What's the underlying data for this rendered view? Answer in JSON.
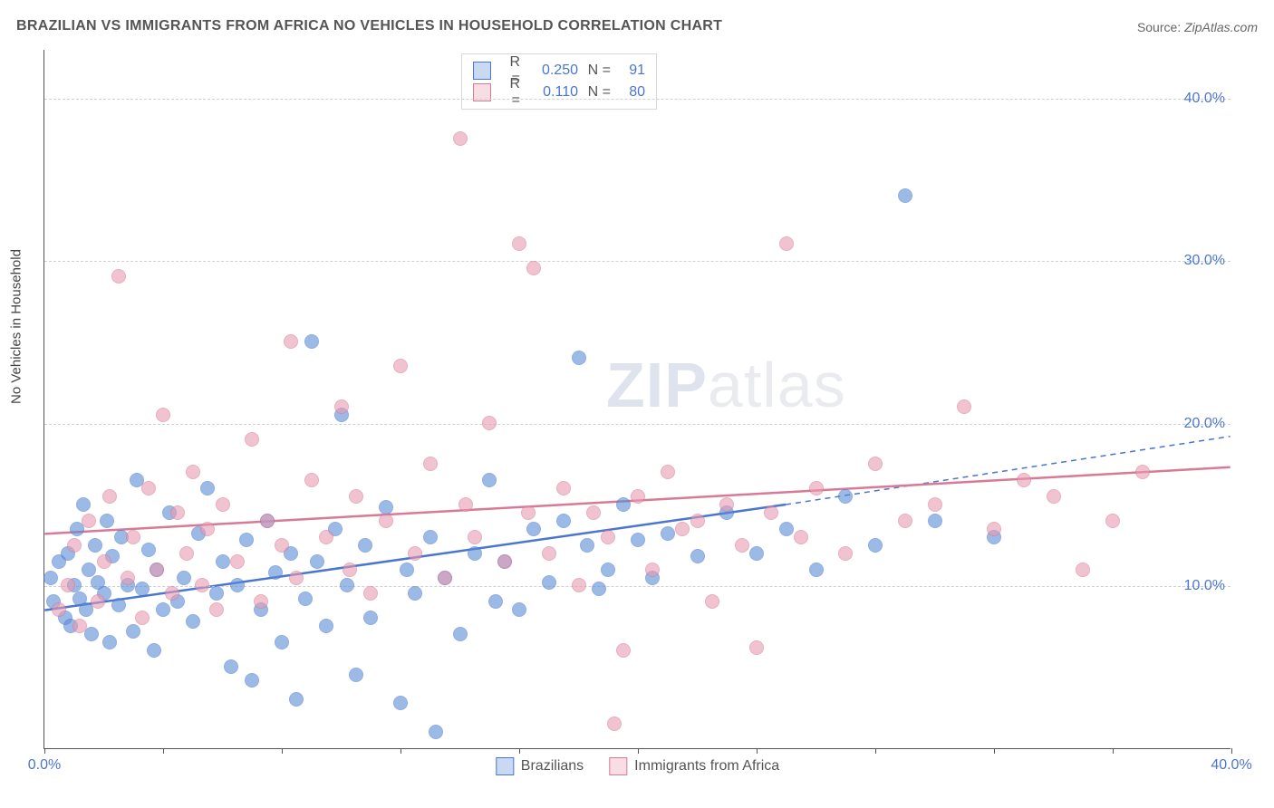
{
  "title": "BRAZILIAN VS IMMIGRANTS FROM AFRICA NO VEHICLES IN HOUSEHOLD CORRELATION CHART",
  "source_label": "Source: ",
  "source_value": "ZipAtlas.com",
  "y_axis_label": "No Vehicles in Household",
  "watermark_a": "ZIP",
  "watermark_b": "atlas",
  "chart": {
    "type": "scatter",
    "xlim": [
      0,
      40
    ],
    "ylim": [
      0,
      43
    ],
    "x_ticks": [
      0,
      4,
      8,
      12,
      16,
      20,
      24,
      28,
      32,
      36,
      40
    ],
    "x_tick_labels": {
      "0": "0.0%",
      "40": "40.0%"
    },
    "y_gridlines": [
      10,
      20,
      30,
      40
    ],
    "y_tick_labels": {
      "10": "10.0%",
      "20": "20.0%",
      "30": "30.0%",
      "40": "40.0%"
    },
    "background_color": "#ffffff",
    "grid_color": "#d0d0d0",
    "marker_radius": 8,
    "marker_fill_opacity": 0.35,
    "marker_stroke_opacity": 0.65
  },
  "series": [
    {
      "id": "brazilians",
      "label": "Brazilians",
      "color": "#5b8dd6",
      "stroke": "#4a76cf",
      "R": "0.250",
      "N": "91",
      "trend": {
        "x1": 0,
        "y1": 8.5,
        "x2": 25,
        "y2": 15.0,
        "dash_ext_x": 40,
        "dash_ext_y": 19.2
      },
      "points": [
        [
          0.2,
          10.5
        ],
        [
          0.3,
          9.0
        ],
        [
          0.5,
          11.5
        ],
        [
          0.7,
          8.0
        ],
        [
          0.8,
          12.0
        ],
        [
          0.9,
          7.5
        ],
        [
          1.0,
          10.0
        ],
        [
          1.1,
          13.5
        ],
        [
          1.2,
          9.2
        ],
        [
          1.3,
          15.0
        ],
        [
          1.4,
          8.5
        ],
        [
          1.5,
          11.0
        ],
        [
          1.6,
          7.0
        ],
        [
          1.7,
          12.5
        ],
        [
          1.8,
          10.2
        ],
        [
          2.0,
          9.5
        ],
        [
          2.1,
          14.0
        ],
        [
          2.2,
          6.5
        ],
        [
          2.3,
          11.8
        ],
        [
          2.5,
          8.8
        ],
        [
          2.6,
          13.0
        ],
        [
          2.8,
          10.0
        ],
        [
          3.0,
          7.2
        ],
        [
          3.1,
          16.5
        ],
        [
          3.3,
          9.8
        ],
        [
          3.5,
          12.2
        ],
        [
          3.7,
          6.0
        ],
        [
          3.8,
          11.0
        ],
        [
          4.0,
          8.5
        ],
        [
          4.2,
          14.5
        ],
        [
          4.5,
          9.0
        ],
        [
          4.7,
          10.5
        ],
        [
          5.0,
          7.8
        ],
        [
          5.2,
          13.2
        ],
        [
          5.5,
          16.0
        ],
        [
          5.8,
          9.5
        ],
        [
          6.0,
          11.5
        ],
        [
          6.3,
          5.0
        ],
        [
          6.5,
          10.0
        ],
        [
          6.8,
          12.8
        ],
        [
          7.0,
          4.2
        ],
        [
          7.3,
          8.5
        ],
        [
          7.5,
          14.0
        ],
        [
          7.8,
          10.8
        ],
        [
          8.0,
          6.5
        ],
        [
          8.3,
          12.0
        ],
        [
          8.5,
          3.0
        ],
        [
          8.8,
          9.2
        ],
        [
          9.0,
          25.0
        ],
        [
          9.2,
          11.5
        ],
        [
          9.5,
          7.5
        ],
        [
          9.8,
          13.5
        ],
        [
          10.0,
          20.5
        ],
        [
          10.2,
          10.0
        ],
        [
          10.5,
          4.5
        ],
        [
          10.8,
          12.5
        ],
        [
          11.0,
          8.0
        ],
        [
          11.5,
          14.8
        ],
        [
          12.0,
          2.8
        ],
        [
          12.2,
          11.0
        ],
        [
          12.5,
          9.5
        ],
        [
          13.0,
          13.0
        ],
        [
          13.2,
          1.0
        ],
        [
          13.5,
          10.5
        ],
        [
          14.0,
          7.0
        ],
        [
          14.5,
          12.0
        ],
        [
          15.0,
          16.5
        ],
        [
          15.2,
          9.0
        ],
        [
          15.5,
          11.5
        ],
        [
          16.0,
          8.5
        ],
        [
          16.5,
          13.5
        ],
        [
          17.0,
          10.2
        ],
        [
          17.5,
          14.0
        ],
        [
          18.0,
          24.0
        ],
        [
          18.3,
          12.5
        ],
        [
          18.7,
          9.8
        ],
        [
          19.0,
          11.0
        ],
        [
          19.5,
          15.0
        ],
        [
          20.0,
          12.8
        ],
        [
          20.5,
          10.5
        ],
        [
          21.0,
          13.2
        ],
        [
          22.0,
          11.8
        ],
        [
          23.0,
          14.5
        ],
        [
          24.0,
          12.0
        ],
        [
          25.0,
          13.5
        ],
        [
          26.0,
          11.0
        ],
        [
          27.0,
          15.5
        ],
        [
          28.0,
          12.5
        ],
        [
          29.0,
          34.0
        ],
        [
          30.0,
          14.0
        ],
        [
          32.0,
          13.0
        ]
      ]
    },
    {
      "id": "africa",
      "label": "Immigrants from Africa",
      "color": "#e89bb0",
      "stroke": "#d87a95",
      "R": "0.110",
      "N": "80",
      "trend": {
        "x1": 0,
        "y1": 13.2,
        "x2": 40,
        "y2": 17.3
      },
      "points": [
        [
          0.5,
          8.5
        ],
        [
          0.8,
          10.0
        ],
        [
          1.0,
          12.5
        ],
        [
          1.2,
          7.5
        ],
        [
          1.5,
          14.0
        ],
        [
          1.8,
          9.0
        ],
        [
          2.0,
          11.5
        ],
        [
          2.2,
          15.5
        ],
        [
          2.5,
          29.0
        ],
        [
          2.8,
          10.5
        ],
        [
          3.0,
          13.0
        ],
        [
          3.3,
          8.0
        ],
        [
          3.5,
          16.0
        ],
        [
          3.8,
          11.0
        ],
        [
          4.0,
          20.5
        ],
        [
          4.3,
          9.5
        ],
        [
          4.5,
          14.5
        ],
        [
          4.8,
          12.0
        ],
        [
          5.0,
          17.0
        ],
        [
          5.3,
          10.0
        ],
        [
          5.5,
          13.5
        ],
        [
          5.8,
          8.5
        ],
        [
          6.0,
          15.0
        ],
        [
          6.5,
          11.5
        ],
        [
          7.0,
          19.0
        ],
        [
          7.3,
          9.0
        ],
        [
          7.5,
          14.0
        ],
        [
          8.0,
          12.5
        ],
        [
          8.3,
          25.0
        ],
        [
          8.5,
          10.5
        ],
        [
          9.0,
          16.5
        ],
        [
          9.5,
          13.0
        ],
        [
          10.0,
          21.0
        ],
        [
          10.3,
          11.0
        ],
        [
          10.5,
          15.5
        ],
        [
          11.0,
          9.5
        ],
        [
          11.5,
          14.0
        ],
        [
          12.0,
          23.5
        ],
        [
          12.5,
          12.0
        ],
        [
          13.0,
          17.5
        ],
        [
          13.5,
          10.5
        ],
        [
          14.0,
          37.5
        ],
        [
          14.2,
          15.0
        ],
        [
          14.5,
          13.0
        ],
        [
          15.0,
          20.0
        ],
        [
          15.5,
          11.5
        ],
        [
          16.0,
          31.0
        ],
        [
          16.3,
          14.5
        ],
        [
          16.5,
          29.5
        ],
        [
          17.0,
          12.0
        ],
        [
          17.5,
          16.0
        ],
        [
          18.0,
          10.0
        ],
        [
          18.5,
          14.5
        ],
        [
          19.0,
          13.0
        ],
        [
          19.2,
          1.5
        ],
        [
          19.5,
          6.0
        ],
        [
          20.0,
          15.5
        ],
        [
          20.5,
          11.0
        ],
        [
          21.0,
          17.0
        ],
        [
          21.5,
          13.5
        ],
        [
          22.0,
          14.0
        ],
        [
          22.5,
          9.0
        ],
        [
          23.0,
          15.0
        ],
        [
          23.5,
          12.5
        ],
        [
          24.0,
          6.2
        ],
        [
          24.5,
          14.5
        ],
        [
          25.0,
          31.0
        ],
        [
          25.5,
          13.0
        ],
        [
          26.0,
          16.0
        ],
        [
          27.0,
          12.0
        ],
        [
          28.0,
          17.5
        ],
        [
          29.0,
          14.0
        ],
        [
          30.0,
          15.0
        ],
        [
          31.0,
          21.0
        ],
        [
          32.0,
          13.5
        ],
        [
          33.0,
          16.5
        ],
        [
          34.0,
          15.5
        ],
        [
          35.0,
          11.0
        ],
        [
          36.0,
          14.0
        ],
        [
          37.0,
          17.0
        ]
      ]
    }
  ],
  "legend_top": {
    "r_label": "R =",
    "n_label": "N ="
  }
}
